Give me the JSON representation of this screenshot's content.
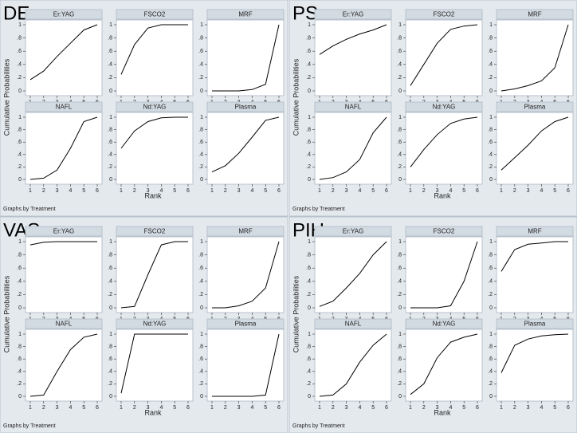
{
  "chart_data": [
    {
      "type": "line",
      "label": "DE",
      "ylabel": "Cumulative Probabilities",
      "xlabel": "Rank",
      "note": "Graphs by Treatment",
      "x": [
        1,
        2,
        3,
        4,
        5,
        6
      ],
      "xlim": [
        1,
        6
      ],
      "xticks": [
        1,
        2,
        3,
        4,
        5,
        6
      ],
      "ylim": [
        0,
        1
      ],
      "yticks": [
        0,
        {
          "value": 0.2,
          "label": ".2"
        },
        {
          "value": 0.4,
          "label": ".4"
        },
        {
          "value": 0.6,
          "label": ".6"
        },
        {
          "value": 0.8,
          "label": ".8"
        },
        1
      ],
      "color": "#000000",
      "series": [
        {
          "name": "Er:YAG",
          "values": [
            0.17,
            0.3,
            0.52,
            0.72,
            0.92,
            1
          ]
        },
        {
          "name": "FSCO2",
          "values": [
            0.25,
            0.7,
            0.95,
            1,
            1,
            1
          ]
        },
        {
          "name": "MRF",
          "values": [
            0,
            0,
            0,
            0.02,
            0.1,
            1
          ]
        },
        {
          "name": "NAFL",
          "values": [
            0,
            0.02,
            0.15,
            0.5,
            0.93,
            1
          ]
        },
        {
          "name": "Nd:YAG",
          "values": [
            0.5,
            0.78,
            0.93,
            0.99,
            1,
            1
          ]
        },
        {
          "name": "Plasma",
          "values": [
            0.12,
            0.22,
            0.42,
            0.68,
            0.95,
            1
          ]
        }
      ]
    },
    {
      "type": "line",
      "label": "PS",
      "ylabel": "Cumulative Probabilities",
      "xlabel": "Rank",
      "note": "Graphs by Treatment",
      "x": [
        1,
        2,
        3,
        4,
        5,
        6
      ],
      "xlim": [
        1,
        6
      ],
      "xticks": [
        1,
        2,
        3,
        4,
        5,
        6
      ],
      "ylim": [
        0,
        1
      ],
      "yticks": [
        0,
        {
          "value": 0.2,
          "label": ".2"
        },
        {
          "value": 0.4,
          "label": ".4"
        },
        {
          "value": 0.6,
          "label": ".6"
        },
        {
          "value": 0.8,
          "label": ".8"
        },
        1
      ],
      "color": "#000000",
      "series": [
        {
          "name": "Er:YAG",
          "values": [
            0.55,
            0.68,
            0.78,
            0.86,
            0.92,
            1
          ]
        },
        {
          "name": "FSCO2",
          "values": [
            0.08,
            0.4,
            0.72,
            0.93,
            0.98,
            1
          ]
        },
        {
          "name": "MRF",
          "values": [
            0,
            0.03,
            0.08,
            0.15,
            0.35,
            1
          ]
        },
        {
          "name": "NAFL",
          "values": [
            0,
            0.03,
            0.12,
            0.32,
            0.75,
            1
          ]
        },
        {
          "name": "Nd:YAG",
          "values": [
            0.2,
            0.48,
            0.72,
            0.9,
            0.97,
            1
          ]
        },
        {
          "name": "Plasma",
          "values": [
            0.15,
            0.35,
            0.55,
            0.78,
            0.93,
            1
          ]
        }
      ]
    },
    {
      "type": "line",
      "label": "VAS",
      "ylabel": "Cumulative Probabilities",
      "xlabel": "Rank",
      "note": "Graphs by Treatment",
      "x": [
        1,
        2,
        3,
        4,
        5,
        6
      ],
      "xlim": [
        1,
        6
      ],
      "xticks": [
        1,
        2,
        3,
        4,
        5,
        6
      ],
      "ylim": [
        0,
        1
      ],
      "yticks": [
        0,
        {
          "value": 0.2,
          "label": ".2"
        },
        {
          "value": 0.4,
          "label": ".4"
        },
        {
          "value": 0.6,
          "label": ".6"
        },
        {
          "value": 0.8,
          "label": ".8"
        },
        1
      ],
      "color": "#000000",
      "series": [
        {
          "name": "Er:YAG",
          "values": [
            0.95,
            0.99,
            1,
            1,
            1,
            1
          ]
        },
        {
          "name": "FSCO2",
          "values": [
            0,
            0.02,
            0.5,
            0.95,
            1,
            1
          ]
        },
        {
          "name": "MRF",
          "values": [
            0,
            0,
            0.03,
            0.1,
            0.3,
            1
          ]
        },
        {
          "name": "NAFL",
          "values": [
            0,
            0.02,
            0.4,
            0.75,
            0.95,
            1
          ]
        },
        {
          "name": "Nd:YAG",
          "values": [
            0.05,
            1,
            1,
            1,
            1,
            1
          ]
        },
        {
          "name": "Plasma",
          "values": [
            0,
            0,
            0,
            0,
            0.02,
            1
          ]
        }
      ]
    },
    {
      "type": "line",
      "label": "PIH",
      "ylabel": "Cumulative Probabilities",
      "xlabel": "Rank",
      "note": "Graphs by Treatment",
      "x": [
        1,
        2,
        3,
        4,
        5,
        6
      ],
      "xlim": [
        1,
        6
      ],
      "xticks": [
        1,
        2,
        3,
        4,
        5,
        6
      ],
      "ylim": [
        0,
        1
      ],
      "yticks": [
        0,
        {
          "value": 0.2,
          "label": ".2"
        },
        {
          "value": 0.4,
          "label": ".4"
        },
        {
          "value": 0.6,
          "label": ".6"
        },
        {
          "value": 0.8,
          "label": ".8"
        },
        1
      ],
      "color": "#000000",
      "series": [
        {
          "name": "Er:YAG",
          "values": [
            0.02,
            0.1,
            0.3,
            0.52,
            0.8,
            1
          ]
        },
        {
          "name": "FSCO2",
          "values": [
            0,
            0,
            0,
            0.03,
            0.4,
            1
          ]
        },
        {
          "name": "MRF",
          "values": [
            0.55,
            0.88,
            0.96,
            0.98,
            1,
            1
          ]
        },
        {
          "name": "NAFL",
          "values": [
            0,
            0.02,
            0.2,
            0.55,
            0.82,
            1
          ]
        },
        {
          "name": "Nd:YAG",
          "values": [
            0.03,
            0.2,
            0.62,
            0.87,
            0.95,
            1
          ]
        },
        {
          "name": "Plasma",
          "values": [
            0.38,
            0.82,
            0.92,
            0.97,
            0.99,
            1
          ]
        }
      ]
    }
  ]
}
